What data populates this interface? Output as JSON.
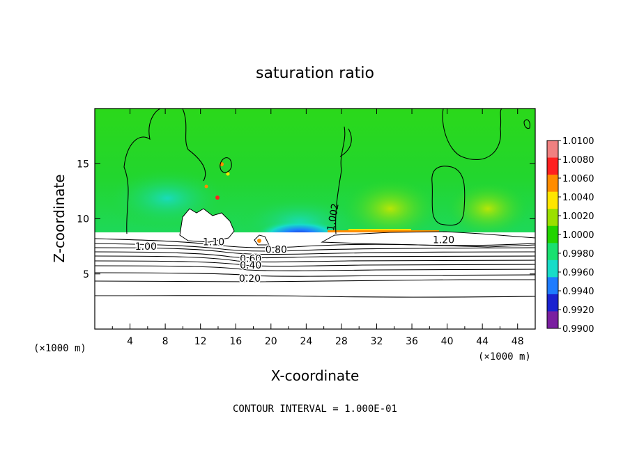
{
  "chart_data": {
    "type": "heatmap",
    "title": "saturation ratio",
    "xlabel": "X-coordinate",
    "ylabel": "Z-coordinate",
    "x_unit_label": "(×1000 m)",
    "y_unit_label": "(×1000 m)",
    "xlim": [
      0,
      50
    ],
    "ylim": [
      0,
      20
    ],
    "x_ticks": [
      4,
      8,
      12,
      16,
      20,
      24,
      28,
      32,
      36,
      40,
      44,
      48
    ],
    "y_ticks": [
      5,
      10,
      15
    ],
    "footer": "CONTOUR INTERVAL = 1.000E-01",
    "colorbar": {
      "levels": [
        "1.0100",
        "1.0080",
        "1.0060",
        "1.0040",
        "1.0020",
        "1.0000",
        "0.9980",
        "0.9960",
        "0.9940",
        "0.9920",
        "0.9900"
      ],
      "colors": [
        "#f08080",
        "#ff2020",
        "#ff8c00",
        "#ffe600",
        "#9be000",
        "#22d400",
        "#19e070",
        "#18dcc8",
        "#1e7cff",
        "#1a22d0",
        "#7a1fa0"
      ]
    },
    "contour_labels": [
      {
        "text": "1.00",
        "x": 5.8,
        "z": 7.2
      },
      {
        "text": "1.10",
        "x": 13.5,
        "z": 7.6
      },
      {
        "text": "0.80",
        "x": 20.6,
        "z": 6.9
      },
      {
        "text": "0.60",
        "x": 17.7,
        "z": 6.1
      },
      {
        "text": "0.40",
        "x": 17.7,
        "z": 5.5
      },
      {
        "text": "0.20",
        "x": 17.6,
        "z": 4.3
      },
      {
        "text": "1.20",
        "x": 39.6,
        "z": 7.8
      },
      {
        "text": "1.002",
        "x": 27.4,
        "z": 10.1
      }
    ]
  }
}
